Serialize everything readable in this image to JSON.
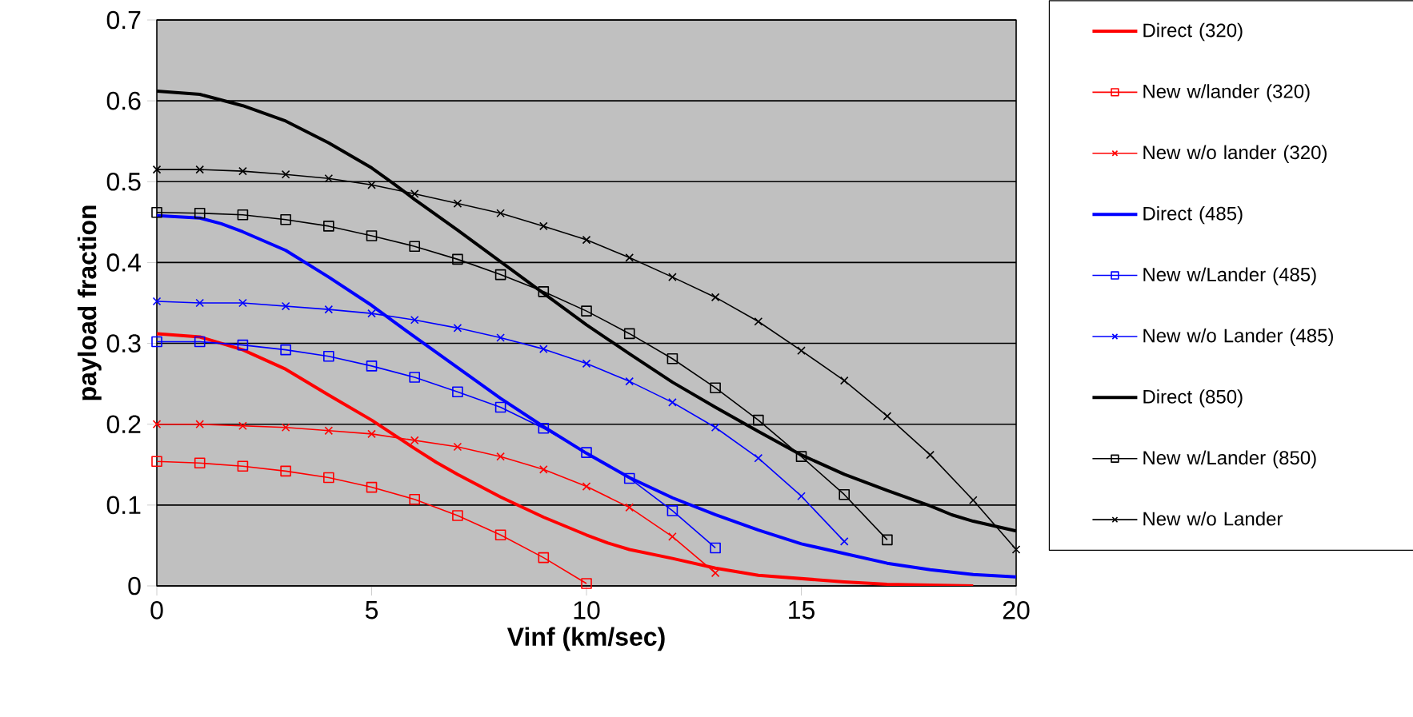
{
  "chart_data": {
    "type": "line",
    "xlabel": "Vinf (km/sec)",
    "ylabel": "payload fraction",
    "xlim": [
      0,
      20
    ],
    "ylim": [
      0,
      0.7
    ],
    "xticks": [
      0,
      5,
      10,
      15,
      20
    ],
    "yticks": [
      0,
      0.1,
      0.2,
      0.3,
      0.4,
      0.5,
      0.6,
      0.7
    ],
    "grid": "y",
    "legend": "right",
    "series": [
      {
        "name": "Direct (320)",
        "color": "#ff0000",
        "marker": "none",
        "x": [
          0,
          1,
          2,
          3,
          4,
          5,
          6,
          6.5,
          7,
          8,
          9,
          10,
          10.5,
          11,
          12,
          13,
          14,
          15,
          16,
          17,
          18,
          19
        ],
        "values": [
          0.312,
          0.308,
          0.292,
          0.268,
          0.236,
          0.205,
          0.17,
          0.153,
          0.138,
          0.11,
          0.085,
          0.063,
          0.053,
          0.045,
          0.034,
          0.022,
          0.013,
          0.009,
          0.005,
          0.002,
          0.001,
          0
        ]
      },
      {
        "name": "New w/lander (320)",
        "color": "#ff0000",
        "marker": "square",
        "x": [
          0,
          1,
          2,
          3,
          4,
          5,
          6,
          7,
          8,
          9,
          10
        ],
        "values": [
          0.154,
          0.152,
          0.148,
          0.142,
          0.134,
          0.122,
          0.107,
          0.087,
          0.063,
          0.035,
          0.003
        ]
      },
      {
        "name": "New w/o lander (320)",
        "color": "#ff0000",
        "marker": "cross",
        "x": [
          0,
          1,
          2,
          3,
          4,
          5,
          6,
          7,
          8,
          9,
          10,
          11,
          12,
          13
        ],
        "values": [
          0.2,
          0.2,
          0.198,
          0.196,
          0.192,
          0.188,
          0.18,
          0.172,
          0.16,
          0.144,
          0.123,
          0.097,
          0.061,
          0.016
        ]
      },
      {
        "name": "Direct (485)",
        "color": "#0000ff",
        "marker": "none",
        "x": [
          0,
          1,
          1.5,
          2,
          3,
          4,
          5,
          6,
          7,
          8,
          9,
          10,
          11,
          12,
          13,
          14,
          15,
          16,
          17,
          18,
          19,
          20
        ],
        "values": [
          0.458,
          0.455,
          0.448,
          0.438,
          0.415,
          0.382,
          0.347,
          0.308,
          0.27,
          0.232,
          0.197,
          0.164,
          0.134,
          0.109,
          0.088,
          0.069,
          0.052,
          0.04,
          0.028,
          0.02,
          0.014,
          0.011
        ]
      },
      {
        "name": "New w/Lander (485)",
        "color": "#0000ff",
        "marker": "square",
        "x": [
          0,
          1,
          2,
          3,
          4,
          5,
          6,
          7,
          8,
          9,
          10,
          11,
          12,
          13
        ],
        "values": [
          0.302,
          0.302,
          0.298,
          0.292,
          0.284,
          0.272,
          0.258,
          0.24,
          0.221,
          0.195,
          0.165,
          0.133,
          0.093,
          0.047
        ]
      },
      {
        "name": "New w/o Lander (485)",
        "color": "#0000ff",
        "marker": "cross",
        "x": [
          0,
          1,
          2,
          3,
          4,
          5,
          6,
          7,
          8,
          9,
          10,
          11,
          12,
          13,
          14,
          15,
          16
        ],
        "values": [
          0.352,
          0.35,
          0.35,
          0.346,
          0.342,
          0.337,
          0.329,
          0.319,
          0.307,
          0.293,
          0.275,
          0.253,
          0.227,
          0.196,
          0.158,
          0.111,
          0.055
        ]
      },
      {
        "name": "Direct (850)",
        "color": "#000000",
        "marker": "none",
        "x": [
          0,
          1,
          2,
          3,
          4,
          5,
          5.5,
          6,
          7,
          8,
          9,
          10,
          11,
          12,
          13,
          14,
          15,
          16,
          17,
          18,
          18.5,
          19,
          20
        ],
        "values": [
          0.612,
          0.608,
          0.594,
          0.575,
          0.548,
          0.517,
          0.498,
          0.478,
          0.44,
          0.401,
          0.362,
          0.323,
          0.287,
          0.252,
          0.221,
          0.191,
          0.162,
          0.138,
          0.118,
          0.099,
          0.088,
          0.08,
          0.068
        ]
      },
      {
        "name": "New w/Lander (850)",
        "color": "#000000",
        "marker": "square",
        "x": [
          0,
          1,
          2,
          3,
          4,
          5,
          6,
          7,
          8,
          9,
          10,
          11,
          12,
          13,
          14,
          15,
          16,
          17
        ],
        "values": [
          0.462,
          0.461,
          0.459,
          0.453,
          0.445,
          0.433,
          0.42,
          0.404,
          0.385,
          0.364,
          0.34,
          0.312,
          0.281,
          0.245,
          0.205,
          0.16,
          0.113,
          0.057
        ]
      },
      {
        "name": "New w/o Lander",
        "color": "#000000",
        "marker": "cross",
        "x": [
          0,
          1,
          2,
          3,
          4,
          5,
          6,
          7,
          8,
          9,
          10,
          11,
          12,
          13,
          14,
          15,
          16,
          17,
          18,
          19,
          20
        ],
        "values": [
          0.515,
          0.515,
          0.513,
          0.509,
          0.504,
          0.496,
          0.485,
          0.473,
          0.461,
          0.445,
          0.428,
          0.406,
          0.382,
          0.357,
          0.327,
          0.291,
          0.254,
          0.21,
          0.162,
          0.106,
          0.045
        ]
      }
    ]
  }
}
